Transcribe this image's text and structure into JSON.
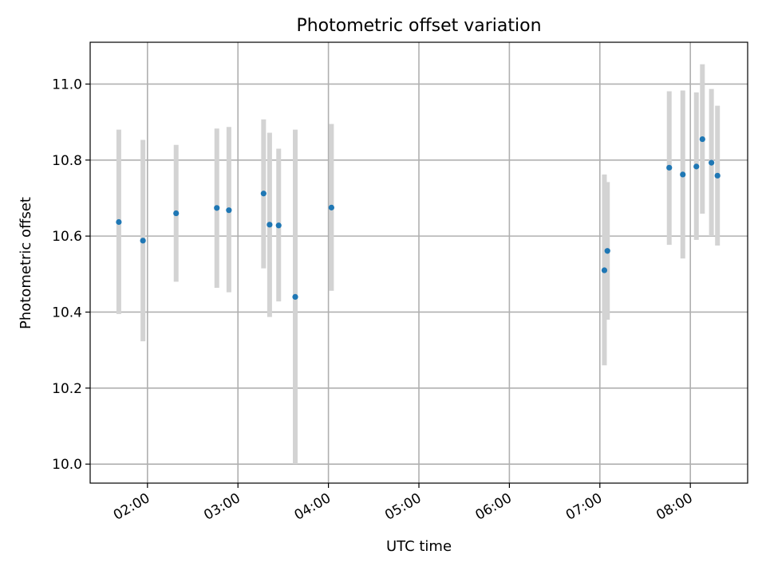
{
  "chart_data": {
    "type": "scatter",
    "title": "Photometric offset variation",
    "xlabel": "UTC time",
    "ylabel": "Photometric offset",
    "x_unit": "hours UTC",
    "xlim": [
      "01:22",
      "08:38"
    ],
    "ylim": [
      9.95,
      11.11
    ],
    "x_ticks": [
      {
        "t": "02:00",
        "label": "02:00"
      },
      {
        "t": "03:00",
        "label": "03:00"
      },
      {
        "t": "04:00",
        "label": "04:00"
      },
      {
        "t": "05:00",
        "label": "05:00"
      },
      {
        "t": "06:00",
        "label": "06:00"
      },
      {
        "t": "07:00",
        "label": "07:00"
      },
      {
        "t": "08:00",
        "label": "08:00"
      }
    ],
    "y_ticks": [
      {
        "v": 10.0,
        "label": "10.0"
      },
      {
        "v": 10.2,
        "label": "10.2"
      },
      {
        "v": 10.4,
        "label": "10.4"
      },
      {
        "v": 10.6,
        "label": "10.6"
      },
      {
        "v": 10.8,
        "label": "10.8"
      },
      {
        "v": 11.0,
        "label": "11.0"
      }
    ],
    "grid": true,
    "point_color": "#1f77b4",
    "errorbar_color": "#d3d3d3",
    "points": [
      {
        "t": "01:41",
        "y": 10.637,
        "low": 10.395,
        "high": 10.88
      },
      {
        "t": "01:57",
        "y": 10.588,
        "low": 10.323,
        "high": 10.853
      },
      {
        "t": "02:19",
        "y": 10.66,
        "low": 10.48,
        "high": 10.84
      },
      {
        "t": "02:46",
        "y": 10.674,
        "low": 10.464,
        "high": 10.883
      },
      {
        "t": "02:54",
        "y": 10.668,
        "low": 10.452,
        "high": 10.887
      },
      {
        "t": "03:17",
        "y": 10.712,
        "low": 10.515,
        "high": 10.907
      },
      {
        "t": "03:21",
        "y": 10.63,
        "low": 10.387,
        "high": 10.872
      },
      {
        "t": "03:27",
        "y": 10.628,
        "low": 10.428,
        "high": 10.83
      },
      {
        "t": "03:38",
        "y": 10.44,
        "low": 10.0,
        "high": 10.88
      },
      {
        "t": "04:02",
        "y": 10.675,
        "low": 10.456,
        "high": 10.895
      },
      {
        "t": "07:03",
        "y": 10.51,
        "low": 10.26,
        "high": 10.762
      },
      {
        "t": "07:05",
        "y": 10.561,
        "low": 10.38,
        "high": 10.742
      },
      {
        "t": "07:46",
        "y": 10.78,
        "low": 10.577,
        "high": 10.981
      },
      {
        "t": "07:55",
        "y": 10.762,
        "low": 10.541,
        "high": 10.983
      },
      {
        "t": "08:04",
        "y": 10.783,
        "low": 10.59,
        "high": 10.978
      },
      {
        "t": "08:08",
        "y": 10.855,
        "low": 10.659,
        "high": 11.052
      },
      {
        "t": "08:14",
        "y": 10.793,
        "low": 10.6,
        "high": 10.987
      },
      {
        "t": "08:18",
        "y": 10.759,
        "low": 10.575,
        "high": 10.943
      }
    ]
  }
}
